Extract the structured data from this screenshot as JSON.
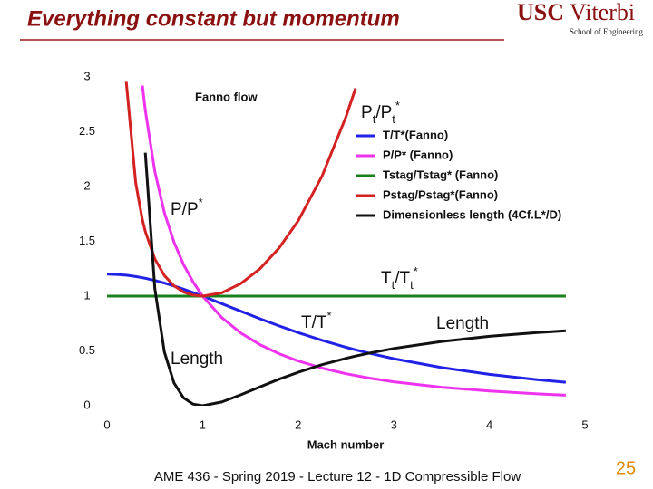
{
  "header": {
    "title": "Everything constant but momentum",
    "logo": {
      "main": "USC",
      "second": "Viterbi",
      "sub": "School of Engineering"
    }
  },
  "chart_data": {
    "type": "line",
    "title": "Fanno flow",
    "xlabel": "Mach number",
    "x": [
      0,
      0.1,
      0.2,
      0.3,
      0.37,
      0.4,
      0.5,
      0.6,
      0.7,
      0.8,
      0.9,
      1,
      1.2,
      1.4,
      1.6,
      1.8,
      2,
      2.25,
      2.5,
      2.6,
      2.75,
      3,
      3.5,
      4,
      4.5,
      4.8
    ],
    "xlim": [
      0,
      5
    ],
    "xticks": [
      0,
      1,
      2,
      3,
      4,
      5
    ],
    "ylim": [
      0,
      3
    ],
    "yticks": [
      0,
      0.5,
      1,
      1.5,
      2,
      2.5,
      3
    ],
    "series": [
      {
        "name": "T/T*(Fanno)",
        "color": "#2222e6",
        "values": [
          1.2,
          1.1976,
          1.1905,
          1.1788,
          1.168,
          1.1628,
          1.1429,
          1.1194,
          1.0929,
          1.0638,
          1.0327,
          1,
          0.9317,
          0.8621,
          0.7937,
          0.7282,
          0.6667,
          0.5963,
          0.5333,
          0.5102,
          0.4776,
          0.4286,
          0.3478,
          0.2857,
          0.2376,
          0.214
        ]
      },
      {
        "name": "P/P* (Fanno)",
        "color": "#ee33ee",
        "values": [
          null,
          null,
          null,
          null,
          2.921,
          2.696,
          2.138,
          1.763,
          1.493,
          1.289,
          1.129,
          1,
          0.804,
          0.663,
          0.557,
          0.474,
          0.408,
          0.343,
          0.292,
          0.275,
          0.251,
          0.218,
          0.169,
          0.134,
          0.108,
          0.096
        ]
      },
      {
        "name": "Tstag/Tstag* (Fanno)",
        "color": "#17801a",
        "values": [
          1,
          1,
          1,
          1,
          1,
          1,
          1,
          1,
          1,
          1,
          1,
          1,
          1,
          1,
          1,
          1,
          1,
          1,
          1,
          1,
          1,
          1,
          1,
          1,
          1,
          1
        ]
      },
      {
        "name": "Pstag/Pstag*(Fanno)",
        "color": "#d42222",
        "values": [
          null,
          null,
          2.964,
          2.035,
          1.696,
          1.59,
          1.34,
          1.188,
          1.094,
          1.038,
          1.009,
          1,
          1.03,
          1.115,
          1.25,
          1.439,
          1.6875,
          2.096,
          2.637,
          2.896,
          null,
          null,
          null,
          null,
          null,
          null
        ]
      },
      {
        "name": "Dimensionless length (4Cf.L*/D)",
        "color": "#111111",
        "values": [
          null,
          null,
          null,
          null,
          null,
          2.309,
          1.069,
          0.491,
          0.208,
          0.072,
          0.0145,
          0,
          0.0336,
          0.0997,
          0.172,
          0.242,
          0.305,
          0.374,
          0.432,
          0.453,
          0.481,
          0.522,
          0.586,
          0.633,
          0.668,
          0.684
        ]
      }
    ],
    "annotations": [
      {
        "runs": [
          {
            "text": "P"
          },
          {
            "text": "t",
            "shift": "sub"
          },
          {
            "text": "/P"
          },
          {
            "text": "t",
            "shift": "sub"
          },
          {
            "text": "*",
            "shift": "super"
          }
        ]
      },
      {
        "runs": [
          {
            "text": "P/P"
          },
          {
            "text": "*",
            "shift": "super"
          }
        ]
      },
      {
        "runs": [
          {
            "text": "T"
          },
          {
            "text": "t",
            "shift": "sub"
          },
          {
            "text": "/T"
          },
          {
            "text": "t",
            "shift": "sub"
          },
          {
            "text": "*",
            "shift": "super"
          }
        ]
      },
      {
        "runs": [
          {
            "text": "T/T"
          },
          {
            "text": "*",
            "shift": "super"
          }
        ]
      },
      {
        "runs": [
          {
            "text": "Length"
          }
        ]
      },
      {
        "runs": [
          {
            "text": "Length"
          }
        ]
      }
    ]
  },
  "footer": {
    "text": "AME 436 - Spring 2019 - Lecture 12 - 1D Compressible Flow",
    "page": "25"
  }
}
